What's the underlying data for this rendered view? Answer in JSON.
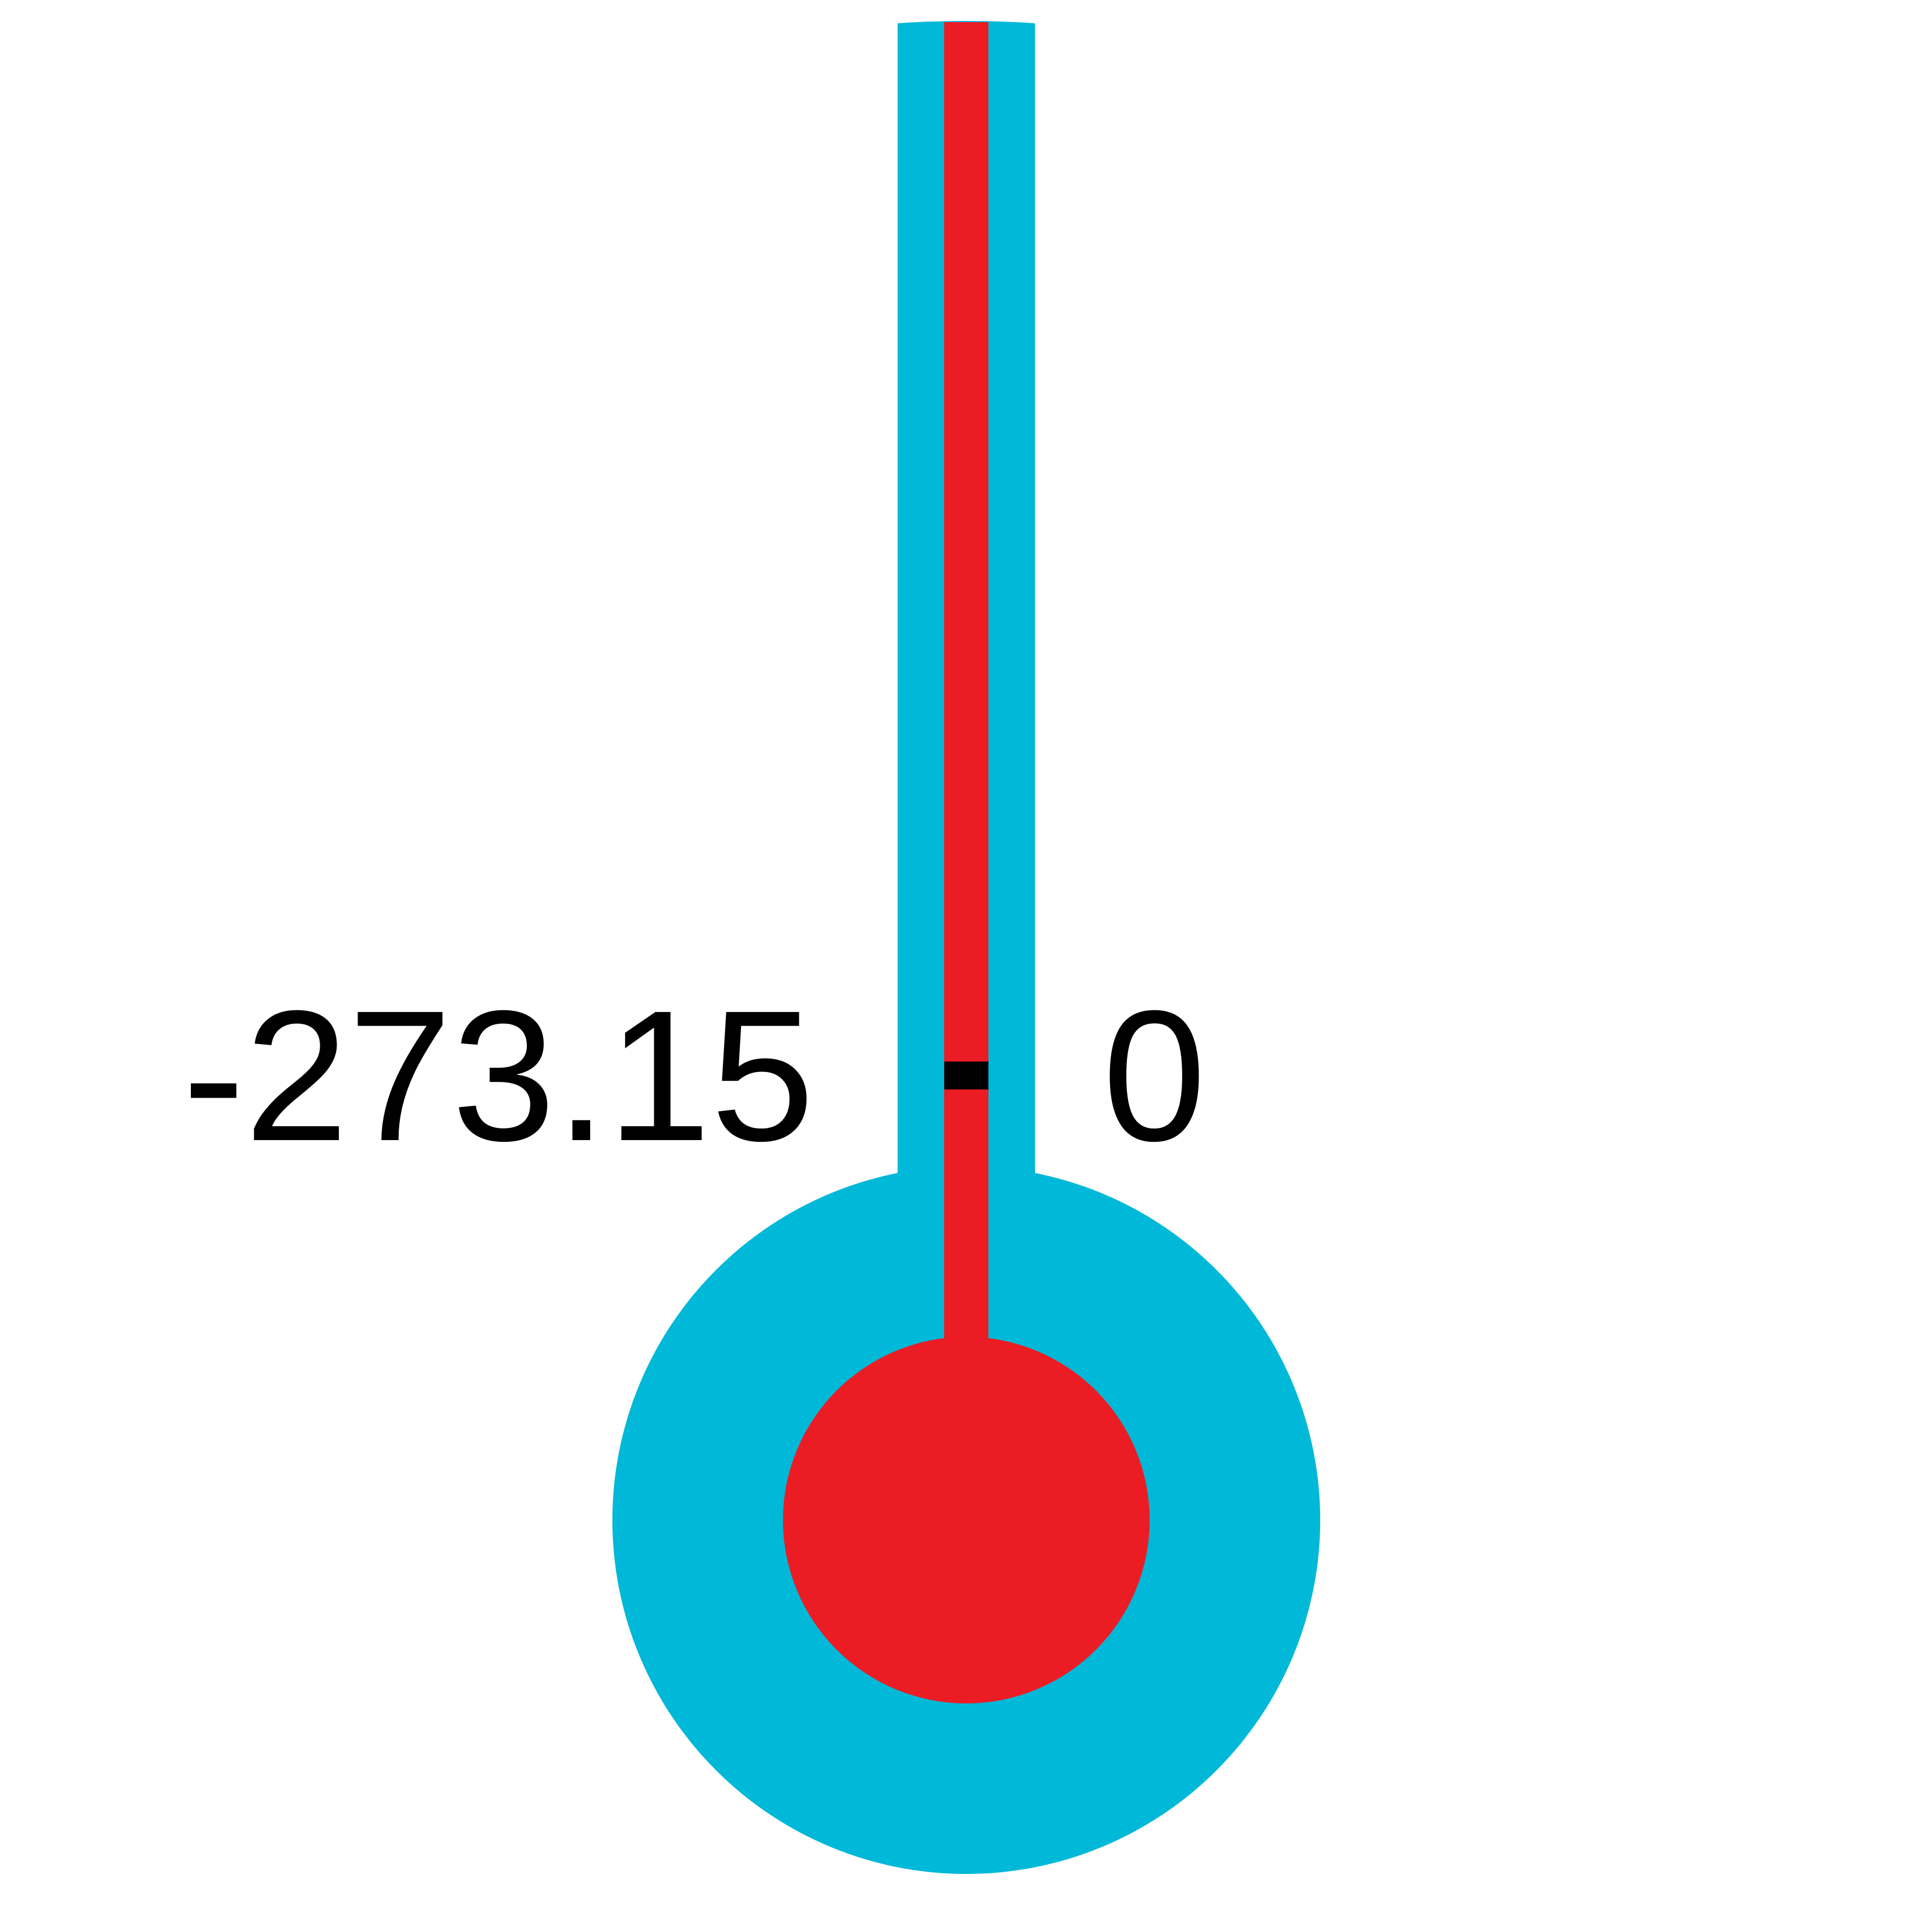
{
  "thermometer": {
    "left_label": "-273.15",
    "right_label": "0",
    "colors": {
      "glass": "#00B8D7",
      "mercury": "#EC1C24",
      "marker": "#000000",
      "background": "#FFFFFF"
    }
  }
}
